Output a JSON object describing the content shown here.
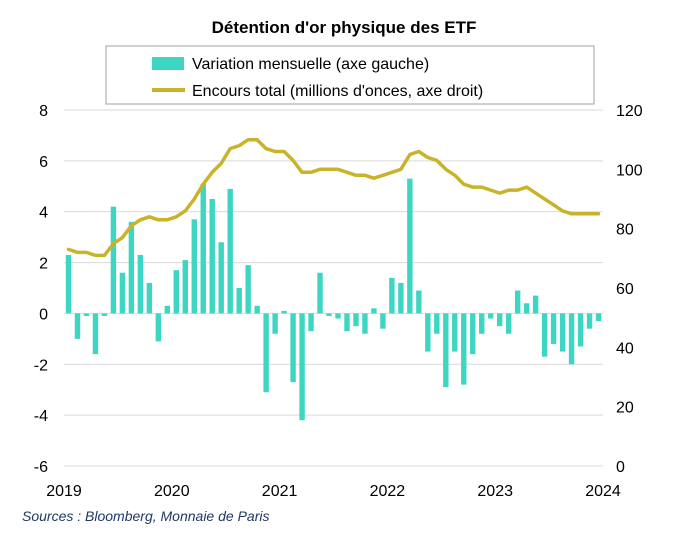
{
  "chart_data": {
    "type": "bar+line",
    "title": "Détention d'or physique des ETF",
    "source": "Sources : Bloomberg, Monnaie de Paris",
    "legend": {
      "placement": "top",
      "items": [
        {
          "label": "Variation mensuelle (axe gauche)",
          "kind": "bar",
          "color": "#3dd6c2"
        },
        {
          "label": "Encours total (millions d'onces, axe droit)",
          "kind": "line",
          "color": "#c9b32a"
        }
      ]
    },
    "x_axis": {
      "ticks": [
        "2019",
        "2020",
        "2021",
        "2022",
        "2023",
        "2024"
      ],
      "range": [
        2019.0,
        2024.0
      ]
    },
    "y_left": {
      "range": [
        -6,
        8
      ],
      "ticks": [
        "-6",
        "-4",
        "-2",
        "0",
        "2",
        "4",
        "6",
        "8"
      ]
    },
    "y_right": {
      "range": [
        0,
        120
      ],
      "ticks": [
        "0",
        "20",
        "40",
        "60",
        "80",
        "100",
        "120"
      ]
    },
    "grid": "horizontal",
    "series": [
      {
        "type": "bar",
        "axis": "left",
        "color": "#3dd6c2",
        "values": [
          2.3,
          -1.0,
          -0.1,
          -1.6,
          -0.1,
          4.2,
          1.6,
          3.6,
          2.3,
          1.2,
          -1.1,
          0.3,
          1.7,
          2.1,
          3.7,
          5.1,
          4.5,
          2.8,
          4.9,
          1.0,
          1.9,
          0.3,
          -3.1,
          -0.8,
          0.1,
          -2.7,
          -4.2,
          -0.7,
          1.6,
          -0.1,
          -0.2,
          -0.7,
          -0.5,
          -0.8,
          0.2,
          -0.6,
          1.4,
          1.2,
          5.3,
          0.9,
          -1.5,
          -0.8,
          -2.9,
          -1.5,
          -2.8,
          -1.6,
          -0.8,
          -0.2,
          -0.5,
          -0.8,
          0.9,
          0.4,
          0.7,
          -1.7,
          -1.2,
          -1.5,
          -2.0,
          -1.3,
          -0.6,
          -0.3
        ]
      },
      {
        "type": "line",
        "axis": "right",
        "color": "#c9b32a",
        "values": [
          73,
          72,
          72,
          71,
          71,
          75,
          77,
          81,
          83,
          84,
          83,
          83,
          84,
          86,
          90,
          95,
          99,
          102,
          107,
          108,
          110,
          110,
          107,
          106,
          106,
          103,
          99,
          99,
          100,
          100,
          100,
          99,
          98,
          98,
          97,
          98,
          99,
          100,
          105,
          106,
          104,
          103,
          100,
          98,
          95,
          94,
          94,
          93,
          92,
          93,
          93,
          94,
          92,
          90,
          88,
          86,
          85,
          85,
          85,
          85
        ]
      }
    ]
  }
}
